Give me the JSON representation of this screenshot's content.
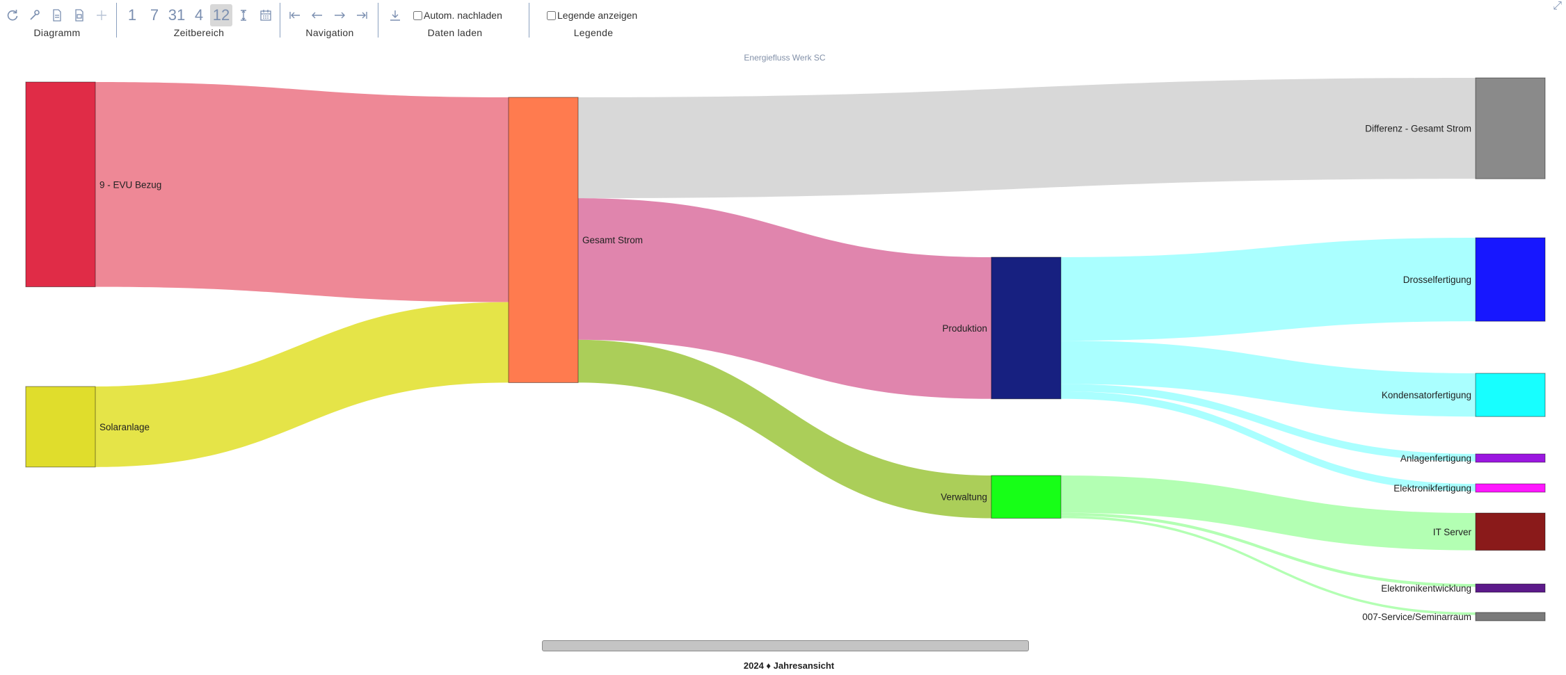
{
  "toolbar": {
    "groups": {
      "diagramm": "Diagramm",
      "zeitbereich": "Zeitbereich",
      "navigation": "Navigation",
      "daten_laden": "Daten laden",
      "legende": "Legende"
    },
    "range_buttons": [
      "1",
      "7",
      "31",
      "4",
      "12"
    ],
    "range_active": "12",
    "auto_reload_label": "Autom. nachladen",
    "show_legend_label": "Legende anzeigen"
  },
  "chart_data": {
    "type": "sankey",
    "title": "Energiefluss Werk SC",
    "nodes": [
      {
        "id": "evu",
        "label": "9 - EVU Bezug",
        "color": "#e02c47",
        "column": 0
      },
      {
        "id": "solar",
        "label": "Solaranlage",
        "color": "#e0dd2c",
        "column": 0
      },
      {
        "id": "gesamt",
        "label": "Gesamt Strom",
        "color": "#ff7b4f",
        "column": 1
      },
      {
        "id": "differenz",
        "label": "Differenz - Gesamt Strom",
        "color": "#8a8a8a",
        "column": 3
      },
      {
        "id": "produktion",
        "label": "Produktion",
        "color": "#172080",
        "column": 2
      },
      {
        "id": "verwaltung",
        "label": "Verwaltung",
        "color": "#17ff17",
        "column": 2
      },
      {
        "id": "drossel",
        "label": "Drosselfertigung",
        "color": "#1717ff",
        "column": 3
      },
      {
        "id": "kondensator",
        "label": "Kondensatorfertigung",
        "color": "#17ffff",
        "column": 3
      },
      {
        "id": "anlagen",
        "label": "Anlagenfertigung",
        "color": "#9b17e0",
        "column": 3
      },
      {
        "id": "elektronik",
        "label": "Elektronikfertigung",
        "color": "#ff17ff",
        "column": 3
      },
      {
        "id": "itserver",
        "label": "IT Server",
        "color": "#8a1a1a",
        "column": 3
      },
      {
        "id": "entwicklung",
        "label": "Elektronikentwicklung",
        "color": "#5c1a8a",
        "column": 3
      },
      {
        "id": "seminar",
        "label": "007-Service/Seminarraum",
        "color": "#7a7a7a",
        "column": 3
      }
    ],
    "links": [
      {
        "source": "evu",
        "target": "gesamt",
        "value": 412,
        "color": "#ee8896"
      },
      {
        "source": "solar",
        "target": "gesamt",
        "value": 162,
        "color": "#e5e448"
      },
      {
        "source": "gesamt",
        "target": "differenz",
        "value": 203,
        "color": "#d8d8d8"
      },
      {
        "source": "gesamt",
        "target": "produktion",
        "value": 285,
        "color": "#e085ad"
      },
      {
        "source": "gesamt",
        "target": "verwaltung",
        "value": 86,
        "color": "#abce59"
      },
      {
        "source": "produktion",
        "target": "drossel",
        "value": 168,
        "color": "#aaffff"
      },
      {
        "source": "produktion",
        "target": "kondensator",
        "value": 87,
        "color": "#aaffff"
      },
      {
        "source": "produktion",
        "target": "anlagen",
        "value": 15,
        "color": "#aaffff"
      },
      {
        "source": "produktion",
        "target": "elektronik",
        "value": 15,
        "color": "#aaffff"
      },
      {
        "source": "verwaltung",
        "target": "itserver",
        "value": 75,
        "color": "#b3ffb3"
      },
      {
        "source": "verwaltung",
        "target": "entwicklung",
        "value": 6,
        "color": "#b3ffb3"
      },
      {
        "source": "verwaltung",
        "target": "seminar",
        "value": 5,
        "color": "#b3ffb3"
      }
    ]
  },
  "footer": {
    "label": "2024 ♦ Jahresansicht"
  }
}
